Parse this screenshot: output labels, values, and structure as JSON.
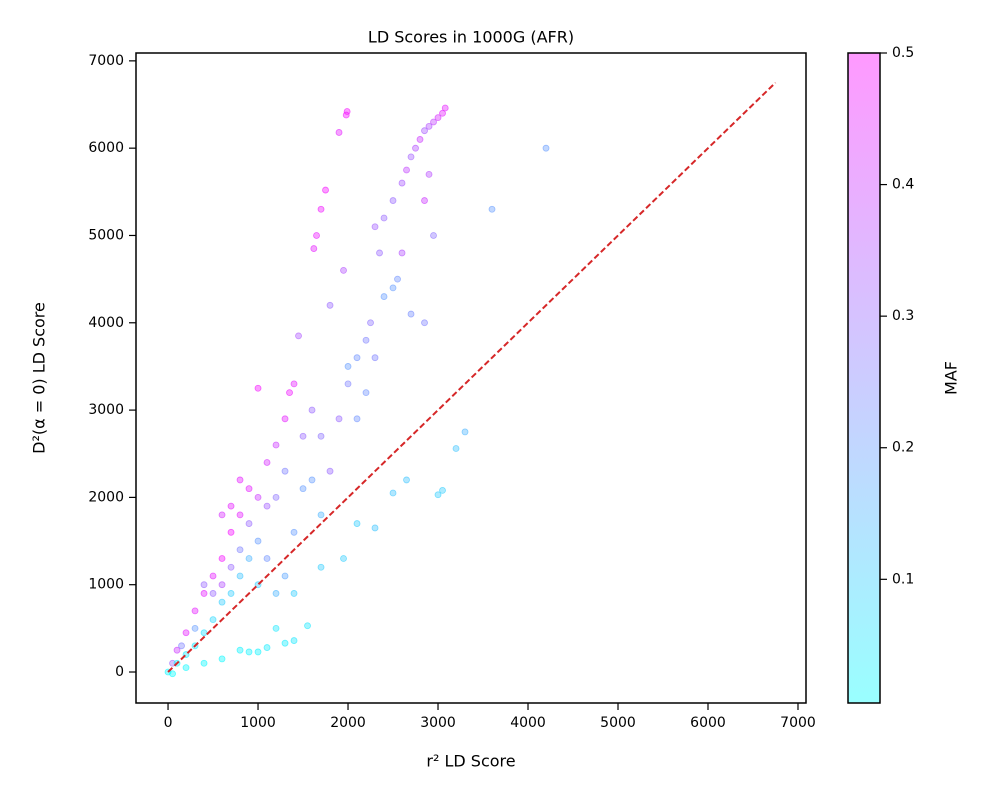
{
  "chart_data": {
    "type": "scatter",
    "title": "LD Scores in 1000G (AFR)",
    "xlabel": "r² LD Score",
    "ylabel": "D²(α = 0) LD Score",
    "colorbar_label": "MAF",
    "colormap": "cool",
    "clim": [
      0.006,
      0.5
    ],
    "cticks": [
      0.1,
      0.2,
      0.3,
      0.4,
      0.5
    ],
    "xlim": [
      -356,
      7089
    ],
    "ylim": [
      -355,
      7090
    ],
    "xticks": [
      0,
      1000,
      2000,
      3000,
      4000,
      5000,
      6000,
      7000
    ],
    "yticks": [
      0,
      1000,
      2000,
      3000,
      4000,
      5000,
      6000,
      7000
    ],
    "x": [
      3080,
      3050,
      3000,
      2950,
      2900,
      2850,
      2800,
      2750,
      2700,
      2650,
      2900,
      2850,
      2600,
      2500,
      2400,
      2300,
      2350,
      2500,
      2550,
      2400,
      2200,
      2250,
      2100,
      2000,
      1990,
      1980,
      1900,
      1750,
      1700,
      1620,
      1650,
      1450,
      1400,
      1350,
      1000,
      1950,
      1800,
      2600,
      2950,
      2850,
      2700,
      4200,
      3600,
      3050,
      3000,
      3200,
      3300,
      2500,
      2650,
      2300,
      1950,
      2100,
      1700,
      1400,
      1300,
      1100,
      1000,
      900,
      800,
      1550,
      1500,
      1600,
      1700,
      1500,
      1300,
      1200,
      1100,
      1000,
      900,
      800,
      700,
      600,
      500,
      400,
      300,
      200,
      100,
      50,
      1000,
      900,
      800,
      700,
      600,
      500,
      400,
      300,
      200,
      100,
      0,
      50,
      200,
      400,
      600,
      1200,
      1300,
      1400,
      1100,
      1800,
      1900,
      2000,
      2100,
      2200,
      2300,
      1600,
      1700,
      800,
      700,
      600,
      900,
      500,
      1200,
      1300,
      1100,
      700,
      800,
      600,
      400,
      1000,
      1200,
      1400,
      300,
      150
    ],
    "y": [
      6460,
      6400,
      6350,
      6300,
      6250,
      6200,
      6100,
      6000,
      5900,
      5750,
      5700,
      5400,
      5600,
      5400,
      5200,
      5100,
      4800,
      4400,
      4500,
      4300,
      3800,
      4000,
      3600,
      3500,
      6420,
      6380,
      6180,
      5520,
      5300,
      4850,
      5000,
      3850,
      3300,
      3200,
      3250,
      4600,
      4200,
      4800,
      5000,
      4000,
      4100,
      6000,
      5300,
      2080,
      2030,
      2560,
      2750,
      2050,
      2200,
      1650,
      1300,
      1700,
      1200,
      360,
      330,
      280,
      230,
      230,
      250,
      530,
      2700,
      3000,
      2700,
      2100,
      2300,
      2000,
      1900,
      2000,
      2100,
      1800,
      1600,
      1300,
      1100,
      900,
      700,
      450,
      250,
      100,
      1500,
      1300,
      1100,
      900,
      800,
      600,
      450,
      300,
      200,
      100,
      0,
      -20,
      50,
      100,
      150,
      900,
      1100,
      1600,
      1300,
      2300,
      2900,
      3300,
      2900,
      3200,
      3600,
      2200,
      1800,
      1400,
      1200,
      1000,
      1700,
      900,
      2600,
      2900,
      2400,
      1900,
      2200,
      1800,
      1000,
      1000,
      500,
      900,
      500,
      300
    ],
    "maf": [
      0.45,
      0.45,
      0.42,
      0.38,
      0.35,
      0.33,
      0.4,
      0.35,
      0.32,
      0.38,
      0.36,
      0.4,
      0.33,
      0.3,
      0.3,
      0.32,
      0.3,
      0.2,
      0.22,
      0.2,
      0.25,
      0.28,
      0.22,
      0.2,
      0.48,
      0.48,
      0.45,
      0.48,
      0.47,
      0.45,
      0.46,
      0.34,
      0.45,
      0.47,
      0.48,
      0.35,
      0.3,
      0.35,
      0.28,
      0.25,
      0.23,
      0.2,
      0.2,
      0.1,
      0.1,
      0.12,
      0.15,
      0.12,
      0.12,
      0.12,
      0.1,
      0.1,
      0.1,
      0.05,
      0.04,
      0.04,
      0.03,
      0.03,
      0.03,
      0.05,
      0.3,
      0.3,
      0.28,
      0.2,
      0.25,
      0.28,
      0.32,
      0.4,
      0.45,
      0.45,
      0.48,
      0.48,
      0.45,
      0.45,
      0.45,
      0.45,
      0.4,
      0.3,
      0.2,
      0.15,
      0.12,
      0.1,
      0.1,
      0.08,
      0.07,
      0.05,
      0.05,
      0.03,
      0.02,
      0.01,
      0.02,
      0.02,
      0.02,
      0.15,
      0.18,
      0.2,
      0.22,
      0.3,
      0.3,
      0.25,
      0.22,
      0.22,
      0.25,
      0.2,
      0.15,
      0.25,
      0.3,
      0.35,
      0.3,
      0.3,
      0.4,
      0.45,
      0.42,
      0.45,
      0.45,
      0.42,
      0.3,
      0.1,
      0.05,
      0.1,
      0.2,
      0.25
    ],
    "reference_line": {
      "x": [
        0,
        6750
      ],
      "y": [
        0,
        6750
      ],
      "color": "#d62728",
      "style": "dashed"
    }
  }
}
